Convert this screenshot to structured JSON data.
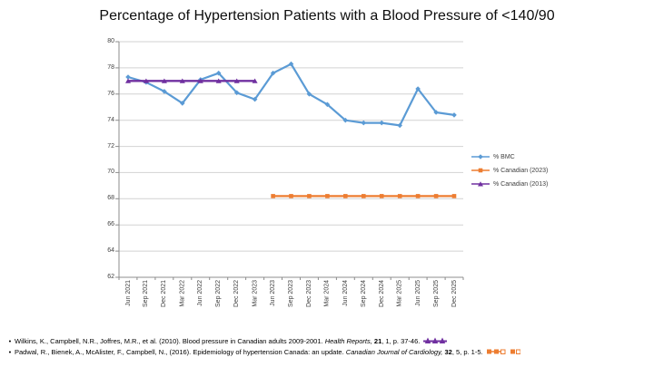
{
  "chart_data": {
    "type": "line",
    "title": "Percentage of Hypertension Patients with a Blood Pressure of <140/90",
    "categories": [
      "Jun 2021",
      "Sep 2021",
      "Dec 2021",
      "Mar 2022",
      "Jun 2022",
      "Sep 2022",
      "Dec 2022",
      "Mar 2023",
      "Jun 2023",
      "Sep 2023",
      "Dec 2023",
      "Mar 2024",
      "Jun 2024",
      "Sep 2024",
      "Dec 2024",
      "Mar 2025",
      "Jun 2025",
      "Sep 2025",
      "Dec 2025"
    ],
    "series": [
      {
        "name": "% BMC",
        "color": "#5B9BD5",
        "marker": "diamond",
        "values": [
          77.3,
          76.9,
          76.2,
          75.3,
          77.1,
          77.6,
          76.1,
          75.6,
          77.6,
          78.3,
          76.0,
          75.2,
          74.0,
          73.8,
          73.8,
          73.6,
          76.4,
          74.6,
          74.4
        ]
      },
      {
        "name": "% Canadian (2023)",
        "color": "#ED7D31",
        "marker": "square",
        "values": [
          null,
          null,
          null,
          null,
          null,
          null,
          null,
          null,
          68.2,
          68.2,
          68.2,
          68.2,
          68.2,
          68.2,
          68.2,
          68.2,
          68.2,
          68.2,
          68.2
        ]
      },
      {
        "name": "% Canadian (2013)",
        "color": "#7030A0",
        "marker": "triangle",
        "values": [
          77.0,
          77.0,
          77.0,
          77.0,
          77.0,
          77.0,
          77.0,
          77.0,
          null,
          null,
          null,
          null,
          null,
          null,
          null,
          null,
          null,
          null,
          null
        ]
      }
    ],
    "ylim": [
      62,
      80
    ],
    "yticks": [
      80,
      78,
      76,
      74,
      72,
      70,
      68,
      66,
      64,
      62
    ],
    "grid": "horizontal",
    "legend_position": "right"
  },
  "chart_style": {
    "grid_color": "#d2d2d2",
    "axis_color": "#8c8c8c",
    "tick_label_color": "#3f3f3f"
  },
  "footnotes": [
    {
      "bullet": "•",
      "text": "Wilkins, K., Campbell, N.R., Joffres, M.R., et al. (2010). Blood pressure in Canadian adults 2009-2001. ",
      "journal": "Health Reports, ",
      "volume": "21",
      "issue_pages": ", 1, p. 37-46. ",
      "marker_icon": "purple-triangle-series-key"
    },
    {
      "bullet": "•",
      "text": "Padwal, R., Bienek, A., McAlister, F., Campbell, N., (2016). Epidemiology of hypertension Canada: an update. ",
      "journal": "Canadian Journal of Cardiology, ",
      "volume": "32",
      "issue_pages": ", 5, p. 1-5. ",
      "marker_icon": "orange-square-series-key"
    }
  ]
}
